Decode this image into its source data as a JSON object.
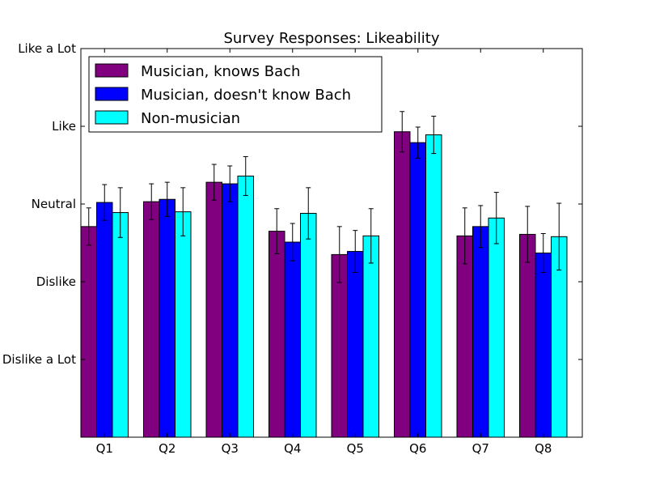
{
  "chart_data": {
    "type": "bar",
    "title": "Survey Responses: Likeability",
    "xlabel": "",
    "ylabel": "",
    "categories": [
      "Q1",
      "Q2",
      "Q3",
      "Q4",
      "Q5",
      "Q6",
      "Q7",
      "Q8"
    ],
    "ylim": [
      0,
      5
    ],
    "yticks": [
      {
        "value": 1,
        "label": "Dislike a Lot"
      },
      {
        "value": 2,
        "label": "Dislike"
      },
      {
        "value": 3,
        "label": "Neutral"
      },
      {
        "value": 4,
        "label": "Like"
      },
      {
        "value": 5,
        "label": "Like a Lot"
      }
    ],
    "grid": false,
    "legend_position": "top-left",
    "series": [
      {
        "name": "Musician, knows Bach",
        "color": "#800080",
        "values": [
          2.71,
          3.03,
          3.28,
          2.65,
          2.35,
          3.93,
          2.59,
          2.61
        ],
        "errors": [
          0.24,
          0.23,
          0.23,
          0.29,
          0.36,
          0.26,
          0.36,
          0.36
        ]
      },
      {
        "name": "Musician, doesn't know Bach",
        "color": "#0000ff",
        "values": [
          3.02,
          3.06,
          3.26,
          2.51,
          2.39,
          3.79,
          2.71,
          2.37
        ],
        "errors": [
          0.23,
          0.22,
          0.23,
          0.24,
          0.27,
          0.2,
          0.27,
          0.25
        ]
      },
      {
        "name": "Non-musician",
        "color": "#00ffff",
        "values": [
          2.89,
          2.9,
          3.36,
          2.88,
          2.59,
          3.89,
          2.82,
          2.58
        ],
        "errors": [
          0.32,
          0.31,
          0.25,
          0.33,
          0.35,
          0.24,
          0.33,
          0.43
        ]
      }
    ]
  }
}
